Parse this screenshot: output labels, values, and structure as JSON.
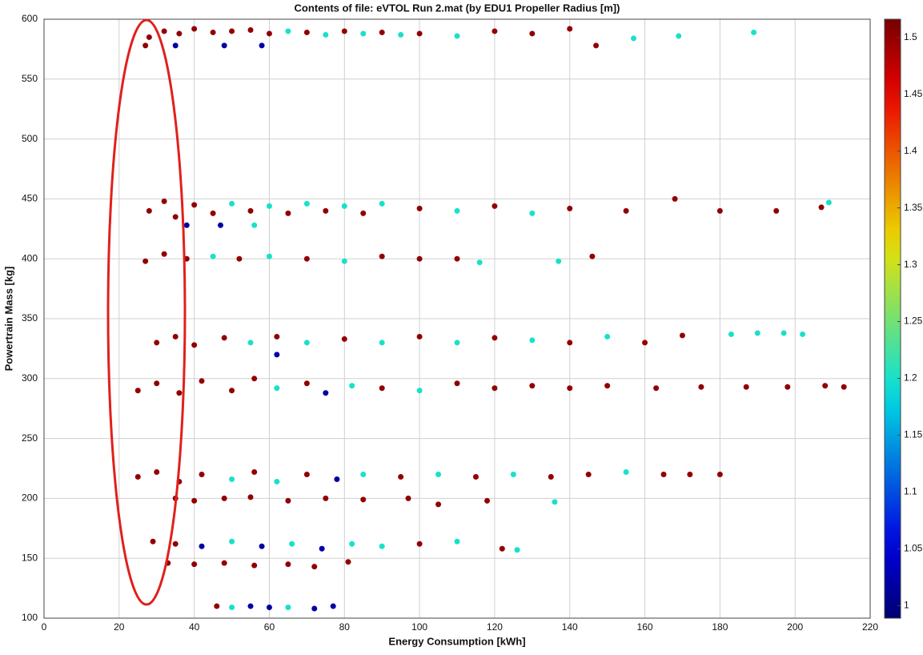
{
  "chart_data": {
    "type": "scatter",
    "title": "Contents of file: eVTOL Run 2.mat (by EDU1 Propeller Radius [m])",
    "x_label": "Energy Consumption [kWh]",
    "y_label": "Powertrain Mass [kg]",
    "xlim": [
      0,
      220
    ],
    "ylim": [
      100,
      600
    ],
    "xticks": [
      0,
      20,
      40,
      60,
      80,
      100,
      120,
      140,
      160,
      180,
      200,
      220
    ],
    "yticks": [
      100,
      150,
      200,
      250,
      300,
      350,
      400,
      450,
      500,
      550,
      600
    ],
    "grid": true,
    "colormap": "jet",
    "clim": [
      0.989,
      1.516
    ],
    "cticks": [
      1,
      1.05,
      1.1,
      1.15,
      1.2,
      1.25,
      1.3,
      1.35,
      1.4,
      1.45,
      1.5
    ],
    "x": [
      28,
      32,
      36,
      40,
      45,
      50,
      55,
      60,
      65,
      70,
      75,
      80,
      85,
      90,
      95,
      100,
      110,
      120,
      130,
      140,
      157,
      169,
      189,
      35,
      48,
      58,
      27,
      147,
      28,
      32,
      35,
      40,
      45,
      50,
      55,
      60,
      65,
      70,
      75,
      80,
      85,
      90,
      100,
      110,
      120,
      130,
      140,
      155,
      168,
      180,
      195,
      207,
      209,
      38,
      47,
      56,
      27,
      32,
      38,
      45,
      52,
      60,
      70,
      80,
      90,
      100,
      110,
      116,
      137,
      146,
      30,
      35,
      40,
      48,
      55,
      62,
      70,
      80,
      90,
      100,
      110,
      120,
      130,
      140,
      150,
      160,
      170,
      183,
      190,
      197,
      202,
      62,
      25,
      30,
      36,
      42,
      50,
      56,
      62,
      70,
      75,
      82,
      90,
      100,
      110,
      120,
      130,
      140,
      150,
      163,
      175,
      187,
      198,
      208,
      213,
      25,
      30,
      36,
      42,
      50,
      56,
      62,
      70,
      78,
      85,
      95,
      105,
      115,
      125,
      135,
      145,
      155,
      165,
      172,
      180,
      35,
      40,
      48,
      55,
      65,
      75,
      85,
      97,
      105,
      118,
      136,
      29,
      35,
      42,
      50,
      58,
      66,
      74,
      82,
      90,
      100,
      110,
      122,
      126,
      33,
      40,
      48,
      56,
      65,
      72,
      81,
      46,
      50,
      55,
      60,
      65,
      72,
      77
    ],
    "y": [
      585,
      590,
      588,
      592,
      589,
      590,
      591,
      588,
      590,
      589,
      587,
      590,
      588,
      589,
      587,
      588,
      586,
      590,
      588,
      592,
      584,
      586,
      589,
      578,
      578,
      578,
      578,
      578,
      440,
      448,
      435,
      445,
      438,
      446,
      440,
      444,
      438,
      446,
      440,
      444,
      438,
      446,
      442,
      440,
      444,
      438,
      442,
      440,
      450,
      440,
      440,
      443,
      447,
      428,
      428,
      428,
      398,
      404,
      400,
      402,
      400,
      402,
      400,
      398,
      402,
      400,
      400,
      397,
      398,
      402,
      330,
      335,
      328,
      334,
      330,
      335,
      330,
      333,
      330,
      335,
      330,
      334,
      332,
      330,
      335,
      330,
      336,
      337,
      338,
      338,
      337,
      320,
      290,
      296,
      288,
      298,
      290,
      300,
      292,
      296,
      288,
      294,
      292,
      290,
      296,
      292,
      294,
      292,
      294,
      292,
      293,
      293,
      293,
      294,
      293,
      218,
      222,
      214,
      220,
      216,
      222,
      214,
      220,
      216,
      220,
      218,
      220,
      218,
      220,
      218,
      220,
      222,
      220,
      220,
      220,
      200,
      198,
      200,
      201,
      198,
      200,
      199,
      200,
      195,
      198,
      197,
      164,
      162,
      160,
      164,
      160,
      162,
      158,
      162,
      160,
      162,
      164,
      158,
      157,
      146,
      145,
      146,
      144,
      145,
      143,
      147,
      110,
      109,
      110,
      109,
      109,
      108,
      110
    ],
    "c": [
      1.5,
      1.5,
      1.5,
      1.5,
      1.5,
      1.5,
      1.5,
      1.5,
      1.2,
      1.5,
      1.2,
      1.5,
      1.2,
      1.5,
      1.2,
      1.5,
      1.2,
      1.5,
      1.5,
      1.5,
      1.2,
      1.2,
      1.2,
      1.02,
      1.02,
      1.02,
      1.5,
      1.5,
      1.5,
      1.5,
      1.5,
      1.5,
      1.5,
      1.2,
      1.5,
      1.2,
      1.5,
      1.2,
      1.5,
      1.2,
      1.5,
      1.2,
      1.5,
      1.2,
      1.5,
      1.2,
      1.5,
      1.5,
      1.5,
      1.5,
      1.5,
      1.5,
      1.2,
      1.02,
      1.02,
      1.2,
      1.5,
      1.5,
      1.5,
      1.2,
      1.5,
      1.2,
      1.5,
      1.2,
      1.5,
      1.5,
      1.5,
      1.2,
      1.2,
      1.5,
      1.5,
      1.5,
      1.5,
      1.5,
      1.2,
      1.5,
      1.2,
      1.5,
      1.2,
      1.5,
      1.2,
      1.5,
      1.2,
      1.5,
      1.2,
      1.5,
      1.5,
      1.2,
      1.2,
      1.2,
      1.2,
      1.02,
      1.5,
      1.5,
      1.5,
      1.5,
      1.5,
      1.5,
      1.2,
      1.5,
      1.02,
      1.2,
      1.5,
      1.2,
      1.5,
      1.5,
      1.5,
      1.5,
      1.5,
      1.5,
      1.5,
      1.5,
      1.5,
      1.5,
      1.5,
      1.5,
      1.5,
      1.5,
      1.5,
      1.2,
      1.5,
      1.2,
      1.5,
      1.02,
      1.2,
      1.5,
      1.2,
      1.5,
      1.2,
      1.5,
      1.5,
      1.2,
      1.5,
      1.5,
      1.5,
      1.5,
      1.5,
      1.5,
      1.5,
      1.5,
      1.5,
      1.5,
      1.5,
      1.5,
      1.5,
      1.2,
      1.5,
      1.5,
      1.02,
      1.2,
      1.02,
      1.2,
      1.02,
      1.2,
      1.2,
      1.5,
      1.2,
      1.5,
      1.2,
      1.5,
      1.5,
      1.5,
      1.5,
      1.5,
      1.5,
      1.5,
      1.5,
      1.2,
      1.02,
      1.02,
      1.2,
      1.02,
      1.02
    ]
  }
}
